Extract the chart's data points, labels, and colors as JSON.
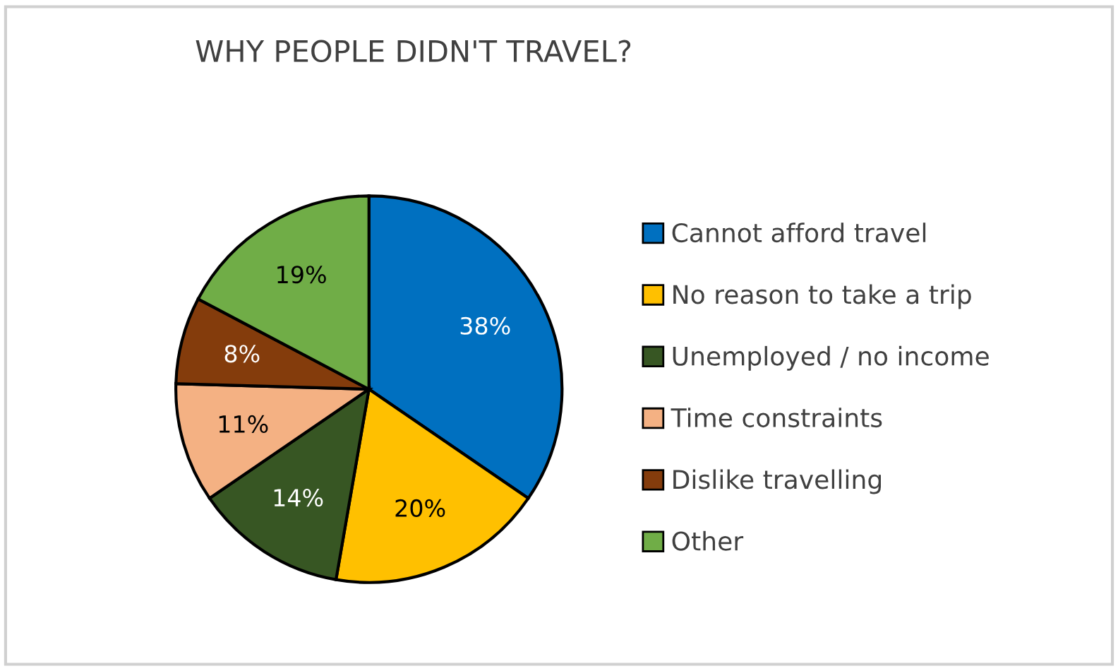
{
  "chart_data": {
    "type": "pie",
    "title": "WHY PEOPLE DIDN'T TRAVEL?",
    "categories": [
      "Cannot afford travel",
      "No reason to take a trip",
      "Unemployed / no income",
      "Time constraints",
      "Dislike travelling",
      "Other"
    ],
    "values": [
      38,
      20,
      14,
      11,
      8,
      19
    ],
    "colors": [
      "#0070c0",
      "#ffc000",
      "#375623",
      "#f4b183",
      "#843c0c",
      "#70ad47"
    ],
    "value_labels": [
      "38%",
      "20%",
      "14%",
      "11%",
      "8%",
      "19%"
    ],
    "legend": "right"
  }
}
